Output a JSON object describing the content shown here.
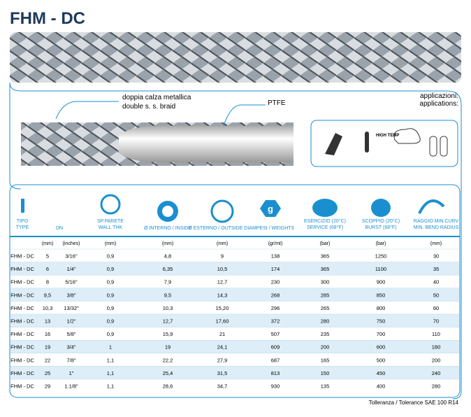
{
  "header": {
    "title": "FHM - DC"
  },
  "diagram": {
    "braid_label": [
      "doppia calza metallica",
      "double s. s. braid"
    ],
    "core_label": "PTFE"
  },
  "applications": {
    "label": [
      "applicazioni:",
      "applications:"
    ],
    "icon_text": "HIGH TEMP"
  },
  "table": {
    "headers": [
      [
        "TIPO",
        "TYPE"
      ],
      [
        "DN"
      ],
      [
        "SP.PARETE",
        "WALL THK"
      ],
      [
        "Ø INTERNO / INSIDE"
      ],
      [
        "Ø ESTERNO / OUTSIDE DIAM"
      ],
      [
        "PESI / WEIGHTS"
      ],
      [
        "ESERCIZIO (20°C)",
        "SERVICE (68°F)"
      ],
      [
        "SCOPPIO (20°C)",
        "BURST (68°F)"
      ],
      [
        "RAGGIO MIN.CURV",
        "MIN. BEND RADIUS"
      ]
    ],
    "weight_icon": "g",
    "units": [
      "(mm)",
      "(inches)",
      "(mm)",
      "(mm)",
      "(mm)",
      "(gr/mt)",
      "(bar)",
      "(bar)",
      "(mm)"
    ],
    "rows": [
      [
        "FHM - DC",
        "5",
        "3/16\"",
        "0,9",
        "4,8",
        "9",
        "138",
        "365",
        "1250",
        "30"
      ],
      [
        "FHM - DC",
        "6",
        "1/4\"",
        "0,9",
        "6,35",
        "10,5",
        "174",
        "365",
        "1100",
        "35"
      ],
      [
        "FHM - DC",
        "8",
        "5/16\"",
        "0,9",
        "7,9",
        "12,7",
        "230",
        "300",
        "900",
        "40"
      ],
      [
        "FHM - DC",
        "9,5",
        "3/8\"",
        "0,9",
        "9,5",
        "14,3",
        "268",
        "285",
        "850",
        "50"
      ],
      [
        "FHM - DC",
        "10,3",
        "13/32\"",
        "0,9",
        "10,3",
        "15,20",
        "296",
        "265",
        "800",
        "60"
      ],
      [
        "FHM - DC",
        "13",
        "1/2\"",
        "0,9",
        "12,7",
        "17,60",
        "372",
        "280",
        "750",
        "70"
      ],
      [
        "FHM - DC",
        "16",
        "5/8\"",
        "0,9",
        "15,9",
        "21",
        "507",
        "235",
        "700",
        "110"
      ],
      [
        "FHM - DC",
        "19",
        "3/4\"",
        "1",
        "19",
        "24,1",
        "609",
        "200",
        "600",
        "180"
      ],
      [
        "FHM - DC",
        "22",
        "7/8\"",
        "1,1",
        "22,2",
        "27,9",
        "687",
        "165",
        "500",
        "200"
      ],
      [
        "FHM - DC",
        "25",
        "1\"",
        "1,1",
        "25,4",
        "31,5",
        "813",
        "150",
        "450",
        "240"
      ],
      [
        "FHM - DC",
        "29",
        "1.1/8\"",
        "1,1",
        "28,6",
        "34,7",
        "930",
        "135",
        "400",
        "280"
      ]
    ]
  },
  "footer": {
    "note": "Tolleranza / Tolerance SAE 100 R14"
  }
}
